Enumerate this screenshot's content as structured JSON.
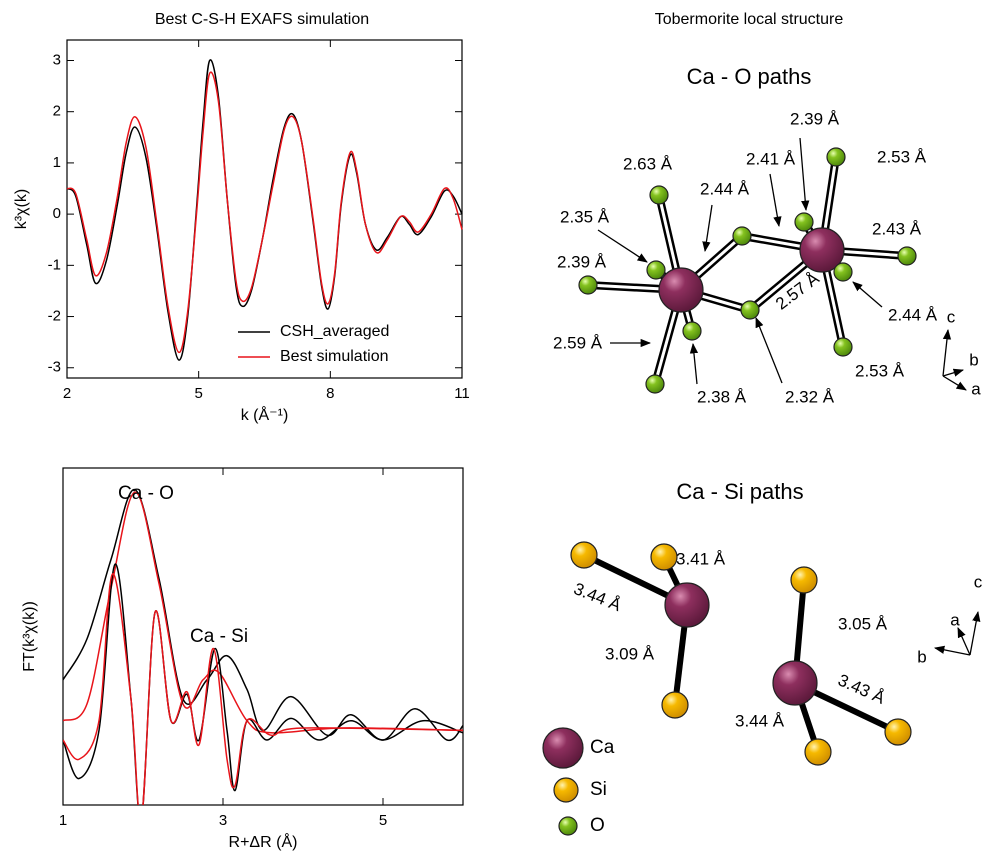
{
  "chart_data": [
    {
      "type": "line",
      "title": "Best C-S-H EXAFS simulation",
      "x_label": "k (Å⁻¹)",
      "y_label": "k³χ(k)",
      "x": [
        2,
        2.2,
        2.45,
        2.65,
        2.9,
        3.15,
        3.35,
        3.55,
        3.8,
        4.05,
        4.3,
        4.55,
        4.75,
        4.95,
        5.1,
        5.25,
        5.45,
        5.65,
        5.85,
        6.0,
        6.2,
        6.45,
        6.7,
        6.95,
        7.15,
        7.35,
        7.6,
        7.8,
        7.95,
        8.1,
        8.25,
        8.45,
        8.6,
        8.8,
        9.05,
        9.3,
        9.6,
        9.8,
        10.0,
        10.3,
        10.6,
        10.8,
        11.0
      ],
      "series": [
        {
          "name": "CSH_averaged",
          "color": "#000000",
          "values": [
            0.5,
            0.35,
            -0.6,
            -1.35,
            -0.9,
            0.2,
            1.2,
            1.7,
            1.1,
            -0.3,
            -1.9,
            -2.85,
            -2.0,
            0.1,
            1.8,
            3.0,
            2.3,
            0.3,
            -1.4,
            -1.8,
            -1.5,
            -0.5,
            0.7,
            1.7,
            1.95,
            1.4,
            -0.1,
            -1.4,
            -1.85,
            -1.2,
            0.2,
            1.15,
            0.8,
            -0.2,
            -0.7,
            -0.45,
            -0.05,
            -0.2,
            -0.4,
            -0.05,
            0.45,
            0.35,
            0.0
          ]
        },
        {
          "name": "Best simulation",
          "color": "#e8141a",
          "values": [
            0.5,
            0.4,
            -0.5,
            -1.2,
            -0.75,
            0.35,
            1.4,
            1.9,
            1.3,
            -0.2,
            -1.8,
            -2.7,
            -1.9,
            0.0,
            1.6,
            2.75,
            2.2,
            0.3,
            -1.3,
            -1.7,
            -1.45,
            -0.5,
            0.6,
            1.65,
            1.9,
            1.4,
            -0.05,
            -1.35,
            -1.75,
            -1.15,
            0.25,
            1.2,
            0.85,
            -0.2,
            -0.75,
            -0.5,
            -0.05,
            -0.15,
            -0.35,
            0.0,
            0.5,
            0.3,
            -0.3
          ]
        }
      ],
      "xlim": [
        2,
        11
      ],
      "xticks": [
        2,
        5,
        8,
        11
      ],
      "ylim": [
        -3.2,
        3.4
      ],
      "yticks": [
        -3,
        -2,
        -1,
        0,
        1,
        2,
        3
      ],
      "legend": "lower right"
    },
    {
      "type": "line",
      "x_label": "R+ΔR (Å)",
      "y_label": "FT(k³χ(k))",
      "annotations": [
        "Ca - O",
        "Ca - Si"
      ],
      "series": [
        {
          "color": "#000000",
          "x": [
            1.0,
            1.3,
            1.6,
            1.9,
            2.2,
            2.5,
            2.8,
            3.05,
            3.3,
            3.5,
            3.85,
            4.3,
            4.6,
            5.0,
            5.4,
            5.8,
            6.0
          ],
          "values": [
            5.2,
            6.9,
            10.2,
            13.1,
            9.4,
            4.4,
            5.2,
            6.2,
            4.8,
            3.1,
            4.5,
            2.9,
            3.75,
            2.7,
            4.0,
            2.7,
            3.3
          ]
        },
        {
          "color": "#e8141a",
          "x": [
            1.0,
            1.3,
            1.6,
            1.9,
            2.2,
            2.5,
            2.75,
            2.95,
            3.3,
            3.6,
            4.5,
            6.0
          ],
          "values": [
            3.5,
            4.2,
            9.0,
            13.0,
            9.2,
            4.2,
            5.2,
            5.5,
            3.5,
            3.0,
            3.2,
            3.1
          ]
        },
        {
          "color": "#000000",
          "x": [
            1.0,
            1.2,
            1.45,
            1.65,
            1.85,
            1.98,
            2.15,
            2.35,
            2.55,
            2.7,
            2.9,
            3.05,
            3.15,
            3.3,
            3.55,
            3.85,
            4.2,
            4.6,
            5.0,
            5.5,
            6.0
          ],
          "values": [
            2.7,
            1.1,
            3.1,
            10.0,
            4.4,
            -0.6,
            8.0,
            3.5,
            4.6,
            2.7,
            6.5,
            3.1,
            0.6,
            3.5,
            2.7,
            3.6,
            2.7,
            3.5,
            2.7,
            3.5,
            3.0
          ]
        },
        {
          "color": "#e8141a",
          "x": [
            1.0,
            1.2,
            1.45,
            1.62,
            1.85,
            1.98,
            2.15,
            2.35,
            2.55,
            2.7,
            2.88,
            3.05,
            3.15,
            3.3,
            3.6,
            4.0,
            6.0
          ],
          "values": [
            2.7,
            1.9,
            3.5,
            9.6,
            4.4,
            -0.6,
            8.0,
            3.5,
            4.7,
            2.5,
            6.5,
            1.9,
            0.8,
            3.5,
            2.9,
            3.2,
            3.1
          ]
        }
      ],
      "xlim": [
        1,
        6
      ],
      "xticks": [
        1,
        3,
        5
      ],
      "ylim": [
        0,
        14
      ]
    }
  ],
  "structure": {
    "title": "Tobermorite local structure",
    "ca_o": {
      "title": "Ca - O paths",
      "labels": [
        "2.39 Å",
        "2.63 Å",
        "2.41 Å",
        "2.53 Å",
        "2.44 Å",
        "2.35 Å",
        "2.43 Å",
        "2.39 Å",
        "2.57 Å",
        "2.44 Å",
        "2.59 Å",
        "2.53 Å",
        "2.38 Å",
        "2.32 Å"
      ],
      "axes": [
        "c",
        "b",
        "a"
      ]
    },
    "ca_si": {
      "title": "Ca - Si paths",
      "labels": [
        "3.41 Å",
        "3.44 Å",
        "3.09 Å",
        "3.05 Å",
        "3.43 Å",
        "3.44 Å"
      ],
      "axes": [
        "c",
        "a",
        "b"
      ]
    },
    "legend": [
      "Ca",
      "Si",
      "O"
    ]
  }
}
